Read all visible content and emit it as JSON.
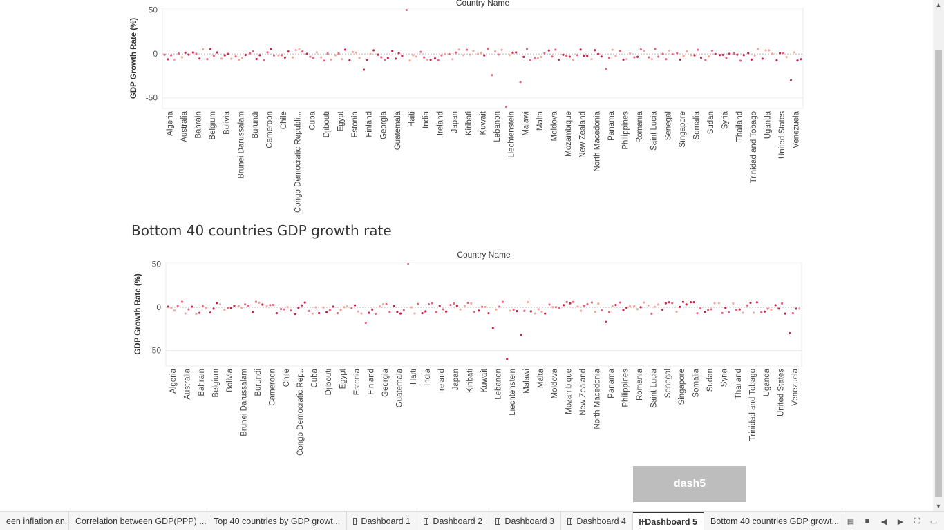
{
  "section_title": "Bottom 40 countries GDP growth rate",
  "dash_button": "dash5",
  "tabs": [
    {
      "label": "een inflation an...",
      "icon": "",
      "active": false
    },
    {
      "label": "Correlation between GDP(PPP) ...",
      "icon": "",
      "active": false
    },
    {
      "label": "Top 40 countries by GDP growt...",
      "icon": "",
      "active": false
    },
    {
      "label": "Dashboard 1",
      "icon": "dashboard-icon",
      "active": false
    },
    {
      "label": "Dashboard 2",
      "icon": "dashboard-icon",
      "active": false
    },
    {
      "label": "Dashboard 3",
      "icon": "dashboard-icon",
      "active": false
    },
    {
      "label": "Dashboard 4",
      "icon": "dashboard-icon",
      "active": false
    },
    {
      "label": "Dashboard 5",
      "icon": "dashboard-icon",
      "active": true
    },
    {
      "label": "Bottom 40 countries GDP growt...",
      "icon": "",
      "active": false
    }
  ],
  "colors": {
    "dark": "#c8254a",
    "mid": "#e8667f",
    "light": "#f6a99a",
    "grid": "#eeeeee"
  },
  "chart_data": [
    {
      "type": "scatter",
      "title": "Country Name",
      "ylabel": "GDP Growth Rate (%)",
      "yticks": [
        50,
        0,
        -50
      ],
      "ylim": [
        -62,
        52
      ],
      "grid": true,
      "categories": [
        "Algeria",
        "Australia",
        "Bahrain",
        "Belgium",
        "Bolivia",
        "Brunei Darussalam",
        "Burundi",
        "Cameroon",
        "Chile",
        "Congo Democratic Republi...",
        "Cuba",
        "Djibouti",
        "Egypt",
        "Estonia",
        "Finland",
        "Georgia",
        "Guatemala",
        "Haiti",
        "India",
        "Ireland",
        "Japan",
        "Kiribati",
        "Kuwait",
        "Lebanon",
        "Liechtenstein",
        "Malawi",
        "Malta",
        "Moldova",
        "Mozambique",
        "New Zealand",
        "North Macedonia",
        "Panama",
        "Philippines",
        "Romania",
        "Saint Lucia",
        "Senegal",
        "Singapore",
        "Somalia",
        "Sudan",
        "Syria",
        "Thailand",
        "Trinidad and Tobago",
        "Uganda",
        "United States",
        "Venezuela"
      ],
      "outliers": [
        {
          "category": "Haiti",
          "value": 50
        },
        {
          "category": "Lebanon",
          "value": -24
        },
        {
          "category": "Liechtenstein",
          "value": -60
        },
        {
          "category": "Malawi",
          "value": -32
        },
        {
          "category": "Venezuela",
          "value": -30
        },
        {
          "category": "Finland",
          "value": -18
        },
        {
          "category": "Panama",
          "value": -17
        }
      ]
    },
    {
      "type": "scatter",
      "title": "Country Name",
      "ylabel": "GDP Growth Rate (%)",
      "yticks": [
        50,
        0,
        -50
      ],
      "ylim": [
        -68,
        52
      ],
      "grid": true,
      "categories": [
        "Algeria",
        "Australia",
        "Bahrain",
        "Belgium",
        "Bolivia",
        "Brunei Darussalam",
        "Burundi",
        "Cameroon",
        "Chile",
        "Congo Democratic Rep..",
        "Cuba",
        "Djibouti",
        "Egypt",
        "Estonia",
        "Finland",
        "Georgia",
        "Guatemala",
        "Haiti",
        "India",
        "Ireland",
        "Japan",
        "Kiribati",
        "Kuwait",
        "Lebanon",
        "Liechtenstein",
        "Malawi",
        "Malta",
        "Moldova",
        "Mozambique",
        "New Zealand",
        "North Macedonia",
        "Panama",
        "Philippines",
        "Romania",
        "Saint Lucia",
        "Senegal",
        "Singapore",
        "Somalia",
        "Sudan",
        "Syria",
        "Thailand",
        "Trinidad and Tobago",
        "Uganda",
        "United States",
        "Venezuela"
      ],
      "outliers": [
        {
          "category": "Haiti",
          "value": 50
        },
        {
          "category": "Lebanon",
          "value": -24
        },
        {
          "category": "Liechtenstein",
          "value": -60
        },
        {
          "category": "Malawi",
          "value": -32
        },
        {
          "category": "Venezuela",
          "value": -30
        },
        {
          "category": "Finland",
          "value": -18
        },
        {
          "category": "Panama",
          "value": -17
        }
      ]
    }
  ]
}
